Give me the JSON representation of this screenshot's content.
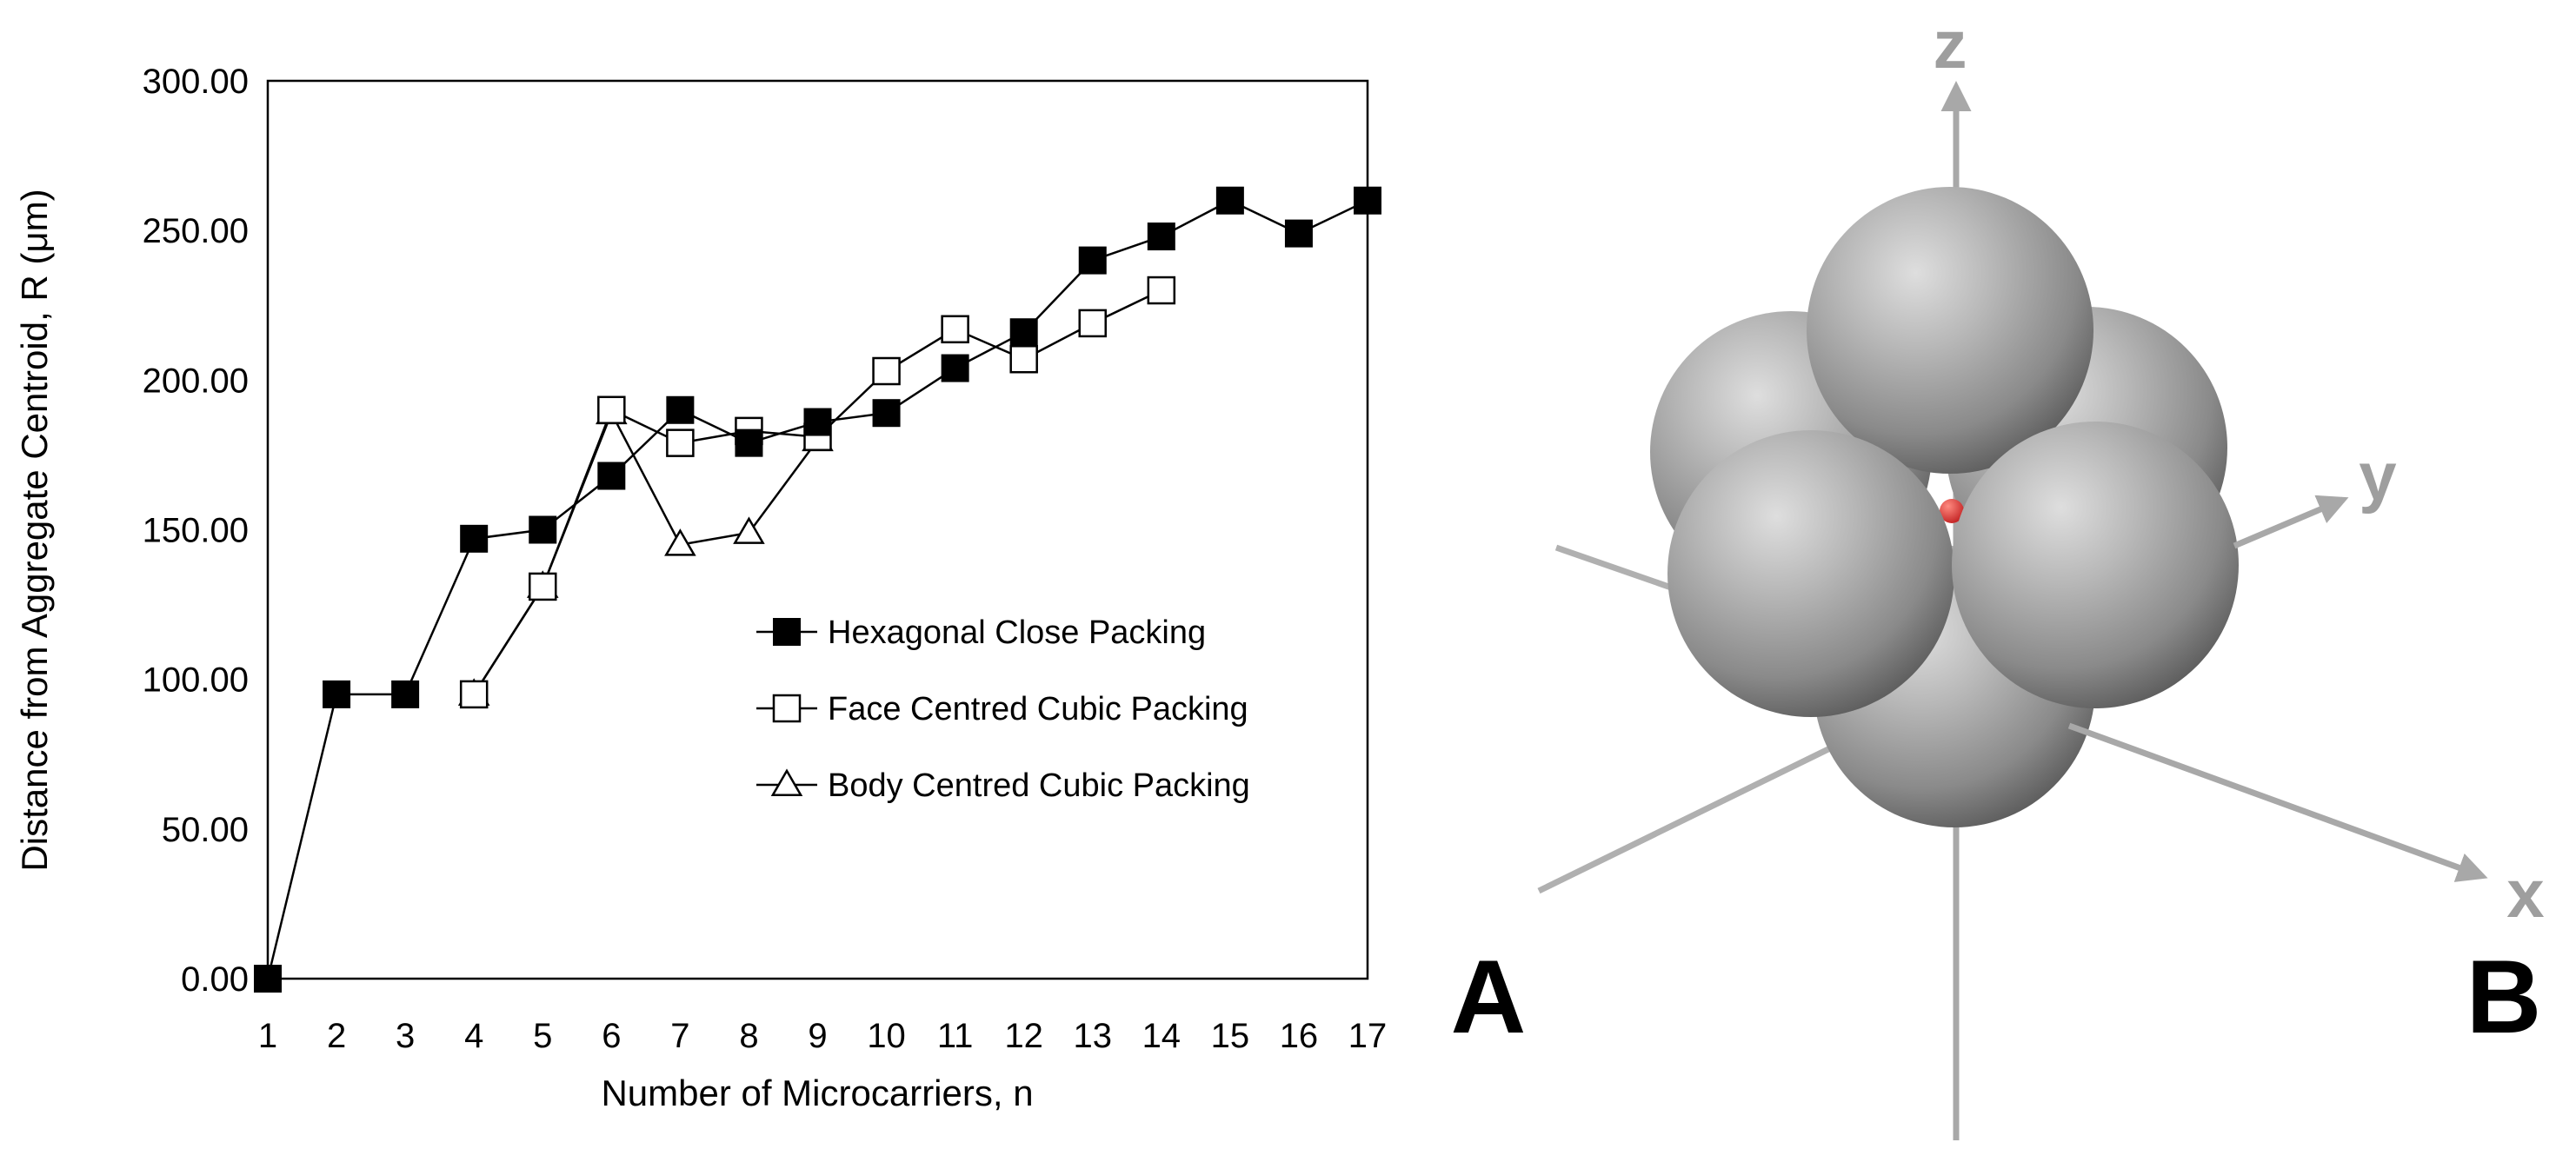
{
  "chart_data": {
    "type": "line",
    "xlabel": "Number of Microcarriers, n",
    "ylabel": "Distance from Aggregate Centroid, R (μm)",
    "x_ticks": [
      "1",
      "2",
      "3",
      "4",
      "5",
      "6",
      "7",
      "8",
      "9",
      "10",
      "11",
      "12",
      "13",
      "14",
      "15",
      "16",
      "17"
    ],
    "y_ticks": [
      "0.00",
      "50.00",
      "100.00",
      "150.00",
      "200.00",
      "250.00",
      "300.00"
    ],
    "xlim": [
      1,
      17
    ],
    "ylim": [
      0,
      300
    ],
    "grid": false,
    "legend_position": "center-right",
    "series": [
      {
        "name": "Hexagonal Close Packing",
        "marker": "filled-square",
        "x": [
          1,
          2,
          3,
          4,
          5,
          6,
          7,
          8,
          9,
          10,
          11,
          12,
          13,
          14,
          15,
          16,
          17
        ],
        "y": [
          0,
          95,
          95,
          147,
          150,
          168,
          190,
          179,
          186,
          189,
          204,
          216,
          240,
          248,
          260,
          249,
          260
        ]
      },
      {
        "name": "Face Centred Cubic Packing",
        "marker": "open-square",
        "x": [
          4,
          5,
          6,
          7,
          8,
          9,
          10,
          11,
          12,
          13,
          14
        ],
        "y": [
          95,
          131,
          190,
          179,
          183,
          181,
          203,
          217,
          207,
          219,
          230
        ]
      },
      {
        "name": "Body Centred Cubic Packing",
        "marker": "open-triangle",
        "x": [
          4,
          5,
          6,
          7,
          8,
          9
        ],
        "y": [
          95,
          131,
          189,
          145,
          149,
          180
        ]
      }
    ]
  },
  "panel_labels": {
    "left": "A",
    "right": "B"
  },
  "diagram": {
    "axis_labels": {
      "z": "z",
      "y": "y",
      "x": "x"
    },
    "sphere_color": "#9a9a9a",
    "centroid_color": "#e53935"
  }
}
